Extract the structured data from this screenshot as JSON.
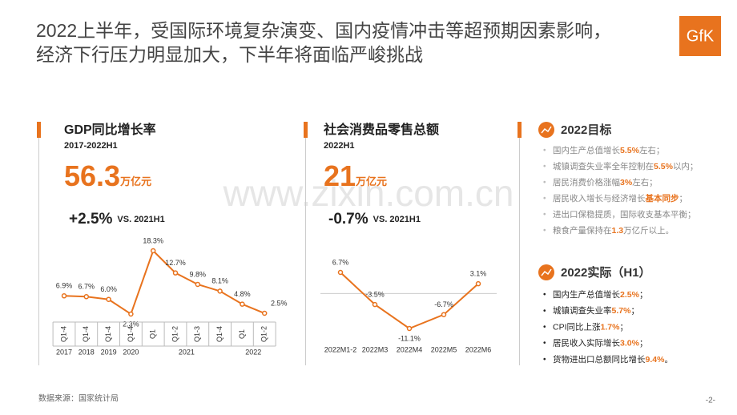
{
  "header": {
    "title": [
      "2022上半年，受国际环境复杂演变、国内疫情冲击等超预期因素影响，",
      "经济下行压力明显加大，下半年将面临严峻挑战"
    ],
    "logo": "GfK"
  },
  "watermark": "www.zixin.com.cn",
  "panels": [
    {
      "title": "GDP同比增长率",
      "subtitle": "2017-2022H1",
      "total": "56.3",
      "unit": "万亿元",
      "change": "+2.5%",
      "compare": "VS. 2021H1"
    },
    {
      "title": "社会消费品零售总额",
      "subtitle": "2022H1",
      "total": "21",
      "unit": "万亿元",
      "change": "-0.7%",
      "compare": "VS. 2021H1"
    }
  ],
  "chart_data": [
    {
      "type": "line",
      "color": "#e8731e",
      "categories": [
        "Q1-4",
        "Q1-4",
        "Q1-4",
        "Q1-4",
        "Q1",
        "Q1-2",
        "Q1-3",
        "Q1-4",
        "Q1",
        "Q1-2"
      ],
      "groups": [
        {
          "label": "2017",
          "span": 1
        },
        {
          "label": "2018",
          "span": 1
        },
        {
          "label": "2019",
          "span": 1
        },
        {
          "label": "2020",
          "span": 1
        },
        {
          "label": "2021",
          "span": 4
        },
        {
          "label": "2022",
          "span": 2
        }
      ],
      "values": [
        6.9,
        6.7,
        6.0,
        2.3,
        18.3,
        12.7,
        9.8,
        8.1,
        4.8,
        2.5
      ],
      "value_labels": [
        "6.9%",
        "6.7%",
        "6.0%",
        "2.3%",
        "18.3%",
        "12.7%",
        "9.8%",
        "8.1%",
        "4.8%",
        "2.5%"
      ]
    },
    {
      "type": "line",
      "color": "#e8731e",
      "categories": [
        "2022M1-2",
        "2022M3",
        "2022M4",
        "2022M5",
        "2022M6"
      ],
      "values": [
        6.7,
        -3.5,
        -11.1,
        -6.7,
        3.1
      ],
      "value_labels": [
        "6.7%",
        "-3.5%",
        "-11.1%",
        "-6.7%",
        "3.1%"
      ]
    }
  ],
  "targets": {
    "title": "2022目标",
    "items": [
      [
        "国内生产总值增长",
        "5.5%",
        "左右；"
      ],
      [
        "城镇调查失业率全年控制在",
        "5.5%",
        "以内；"
      ],
      [
        "居民消费价格涨幅",
        "3%",
        "左右；"
      ],
      [
        "居民收入增长与经济增长",
        "基本同步",
        "；"
      ],
      [
        "进出口保稳提质，国际收支基本平衡；"
      ],
      [
        "粮食产量保持在",
        "1.3",
        "万亿斤以上。"
      ]
    ]
  },
  "actual": {
    "title": "2022实际（H1）",
    "items": [
      [
        "国内生产总值增长",
        "2.5%",
        "；"
      ],
      [
        "城镇调查失业率",
        "5.7%",
        "；"
      ],
      [
        "CPI同比上涨",
        "1.7%",
        "；"
      ],
      [
        "居民收入实际增长",
        "3.0%",
        "；"
      ],
      [
        "货物进出口总额同比增长",
        "9.4%",
        "。"
      ]
    ]
  },
  "footer": {
    "source": "数据来源：国家统计局",
    "page": "-2-"
  }
}
